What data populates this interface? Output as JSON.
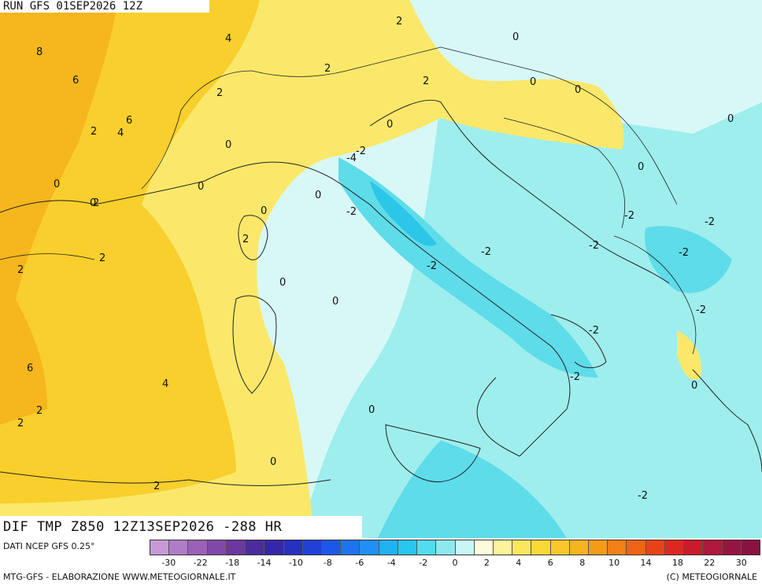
{
  "header": {
    "run_label": "RUN GFS 01SEP2026 12Z"
  },
  "map": {
    "title": "DIF TMP Z850 12Z13SEP2026 -288 HR",
    "contour_labels": [
      "8",
      "6",
      "6",
      "4",
      "4",
      "2",
      "2",
      "2",
      "2",
      "2",
      "2",
      "2",
      "2",
      "2",
      "2",
      "6",
      "4",
      "2",
      "2",
      "0",
      "0",
      "0",
      "0",
      "0",
      "0",
      "0",
      "0",
      "0",
      "0",
      "0",
      "0",
      "0",
      "0",
      "0",
      "0",
      "0",
      "-2",
      "-2",
      "-2",
      "-2",
      "-2",
      "-2",
      "-2",
      "-2",
      "-2",
      "-2",
      "-2",
      "-2",
      "-4"
    ],
    "colors": {
      "warm_6": "#f5b61e",
      "warm_4": "#f8cf2c",
      "warm_2": "#fbe86a",
      "near_0": "#fdf6b8",
      "cool_0": "#d8f8f8",
      "cool_2": "#9eeeed",
      "cool_4": "#5edcea",
      "cool_6": "#2cc6e8",
      "border": "#222222"
    }
  },
  "source": {
    "text": "DATI NCEP GFS 0.25°"
  },
  "legend": {
    "colors": [
      "#c79ad6",
      "#b07cc8",
      "#9a60b8",
      "#8048a8",
      "#6a38a0",
      "#4a2c9c",
      "#3528a8",
      "#2830c0",
      "#2040d8",
      "#1c58e8",
      "#1e74f0",
      "#2090f4",
      "#22b0f4",
      "#28c6f0",
      "#52dcf0",
      "#8ee8f0",
      "#c8f6f6",
      "#fdfbd8",
      "#fdf39c",
      "#fbe75c",
      "#f9d838",
      "#f8c82a",
      "#f6b41e",
      "#f49c18",
      "#f28014",
      "#ef6414",
      "#ea4218",
      "#dc2820",
      "#c81c2c",
      "#b0183c",
      "#981440",
      "#8a1240"
    ],
    "ticks": [
      "-30",
      "-22",
      "-18",
      "-14",
      "-10",
      "-8",
      "-6",
      "-4",
      "-2",
      "0",
      "2",
      "4",
      "6",
      "8",
      "10",
      "14",
      "18",
      "22",
      "30"
    ]
  },
  "footer": {
    "left": "MTG-GFS - ELABORAZIONE WWW.METEOGIORNALE.IT",
    "right": "(C) METEOGIORNALE"
  }
}
